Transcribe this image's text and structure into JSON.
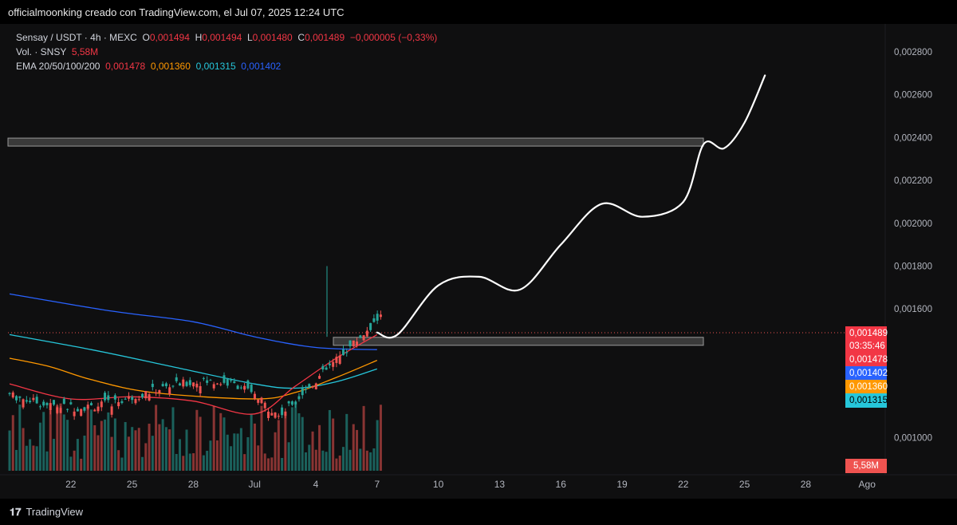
{
  "header": {
    "title": "officialmoonking creado con TradingView.com, el Jul 07, 2025 12:24 UTC"
  },
  "legend": {
    "symbol": "Sensay / USDT · 4h · MEXC",
    "o_label": "O",
    "o": "0,001494",
    "h_label": "H",
    "h": "0,001494",
    "l_label": "L",
    "l": "0,001480",
    "c_label": "C",
    "c": "0,001489",
    "change": "−0,000005 (−0,33%)",
    "vol_label": "Vol. · SNSY",
    "vol": "5,58M",
    "ema_label": "EMA 20/50/100/200",
    "ema20": "0,001478",
    "ema50": "0,001360",
    "ema100": "0,001315",
    "ema200": "0,001402"
  },
  "badges": {
    "price": "0,001489",
    "countdown": "03:35:46",
    "ema20": "0,001478",
    "ema200": "0,001402",
    "ema50": "0,001360",
    "ema100": "0,001315",
    "volume": "5,58M"
  },
  "colors": {
    "up": "#26a69a",
    "down": "#ef5350",
    "ema20": "#f23645",
    "ema50": "#ff9800",
    "ema100": "#26c6da",
    "ema200": "#2962ff",
    "drawing": "#ffffff",
    "zone": "#3a3a3a"
  },
  "footer": {
    "brand": "TradingView"
  },
  "chart_data": {
    "type": "candlestick",
    "y_axis": {
      "ticks": [
        "0,002800",
        "0,002600",
        "0,002400",
        "0,002200",
        "0,002000",
        "0,001800",
        "0,001600",
        "0,001000"
      ],
      "range": [
        0.000895,
        0.00296
      ]
    },
    "x_axis": {
      "ticks": [
        "22",
        "25",
        "28",
        "Jul",
        "4",
        "7",
        "10",
        "13",
        "16",
        "19",
        "22",
        "25",
        "28",
        "Ago"
      ]
    },
    "zones": [
      {
        "from": 0.00237,
        "to": 0.00239
      },
      {
        "from": 0.00144,
        "to": 0.00146
      }
    ],
    "current_price": 0.001489,
    "ema200_path": [
      [
        "06-19",
        0.00167
      ],
      [
        "06-24",
        0.00159
      ],
      [
        "06-28",
        0.00154
      ],
      [
        "07-01",
        0.00147
      ],
      [
        "07-04",
        0.00142
      ],
      [
        "07-07",
        0.00141
      ]
    ],
    "ema100_path": [
      [
        "06-19",
        0.00148
      ],
      [
        "06-23",
        0.00141
      ],
      [
        "06-27",
        0.00133
      ],
      [
        "07-01",
        0.00125
      ],
      [
        "07-03",
        0.00123
      ],
      [
        "07-05",
        0.00126
      ],
      [
        "07-07",
        0.00132
      ]
    ],
    "ema50_path": [
      [
        "06-19",
        0.00137
      ],
      [
        "06-21",
        0.00133
      ],
      [
        "06-23",
        0.00127
      ],
      [
        "06-26",
        0.00121
      ],
      [
        "07-01",
        0.00118
      ],
      [
        "07-03",
        0.00121
      ],
      [
        "07-05",
        0.00128
      ],
      [
        "07-07",
        0.00136
      ]
    ],
    "ema20_path": [
      [
        "06-19",
        0.00125
      ],
      [
        "06-22",
        0.00118
      ],
      [
        "06-25",
        0.00119
      ],
      [
        "06-28",
        0.00117
      ],
      [
        "07-01",
        0.00111
      ],
      [
        "07-03",
        0.00124
      ],
      [
        "07-05",
        0.00137
      ],
      [
        "07-07",
        0.00148
      ]
    ],
    "projection_path": [
      [
        "07-07",
        0.00149
      ],
      [
        "07-08",
        0.00148
      ],
      [
        "07-10",
        0.00171
      ],
      [
        "07-12",
        0.00175
      ],
      [
        "07-14",
        0.00169
      ],
      [
        "07-16",
        0.0019
      ],
      [
        "07-18",
        0.00209
      ],
      [
        "07-20",
        0.00203
      ],
      [
        "07-22",
        0.0021
      ],
      [
        "07-23",
        0.00237
      ],
      [
        "07-24",
        0.00235
      ],
      [
        "07-25",
        0.00247
      ],
      [
        "07-26",
        0.00269
      ]
    ]
  }
}
